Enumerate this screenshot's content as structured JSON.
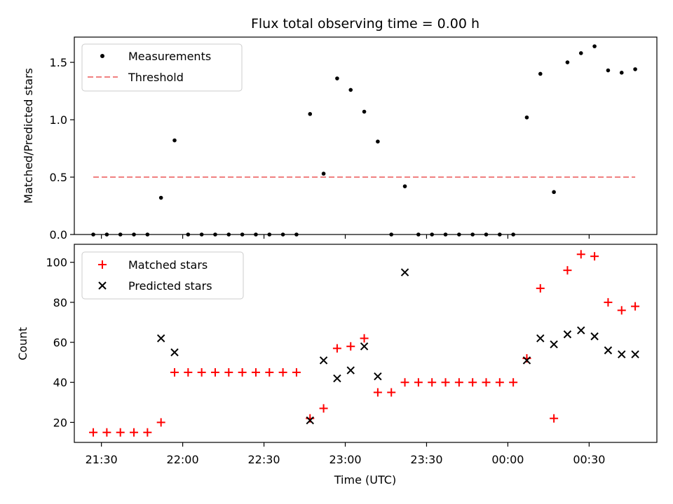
{
  "chart_data": [
    {
      "type": "scatter",
      "title": "Flux total observing time = 0.00 h",
      "xlabel": "",
      "ylabel": "Matched/Predicted stars",
      "ylim": [
        0,
        1.72
      ],
      "yticks": [
        "0.0",
        "0.5",
        "1.0",
        "1.5"
      ],
      "ytick_values": [
        0,
        0.5,
        1.0,
        1.5
      ],
      "x": [
        "21:27",
        "21:32",
        "21:37",
        "21:42",
        "21:47",
        "21:52",
        "21:57",
        "22:02",
        "22:07",
        "22:12",
        "22:17",
        "22:22",
        "22:27",
        "22:32",
        "22:37",
        "22:42",
        "22:47",
        "22:52",
        "22:57",
        "23:02",
        "23:07",
        "23:12",
        "23:17",
        "23:22",
        "23:27",
        "23:32",
        "23:37",
        "23:42",
        "23:47",
        "23:52",
        "23:57",
        "00:02",
        "00:07",
        "00:12",
        "00:17",
        "00:22",
        "00:27",
        "00:32",
        "00:37",
        "00:42",
        "00:47"
      ],
      "series": [
        {
          "name": "Measurements",
          "marker": "dot",
          "color": "#000000",
          "values": [
            0,
            0,
            0,
            0,
            0,
            0.32,
            0.82,
            0,
            0,
            0,
            0,
            0,
            0,
            0,
            0,
            0,
            1.05,
            0.53,
            1.36,
            1.26,
            1.07,
            0.81,
            0,
            0.42,
            0,
            0,
            0,
            0,
            0,
            0,
            0,
            0,
            1.02,
            1.4,
            0.37,
            1.5,
            1.58,
            1.64,
            1.43,
            1.41,
            1.44
          ]
        },
        {
          "name": "Threshold",
          "style": "dashed",
          "color": "#f08080",
          "x": [
            "21:27",
            "00:47"
          ],
          "values": [
            0.5,
            0.5
          ]
        }
      ],
      "legend": "top-left"
    },
    {
      "type": "scatter",
      "title": "",
      "xlabel": "Time (UTC)",
      "ylabel": "Count",
      "ylim": [
        10,
        109
      ],
      "yticks": [
        "20",
        "40",
        "60",
        "80",
        "100"
      ],
      "ytick_values": [
        20,
        40,
        60,
        80,
        100
      ],
      "xlim": [
        "21:20",
        "00:55"
      ],
      "xticks": [
        "21:30",
        "22:00",
        "22:30",
        "23:00",
        "23:30",
        "00:00",
        "00:30"
      ],
      "series": [
        {
          "name": "Matched stars",
          "marker": "plus",
          "color": "#ff0000",
          "x": [
            "21:27",
            "21:32",
            "21:37",
            "21:42",
            "21:47",
            "21:52",
            "21:57",
            "22:02",
            "22:07",
            "22:12",
            "22:17",
            "22:22",
            "22:27",
            "22:32",
            "22:37",
            "22:42",
            "22:47",
            "22:52",
            "22:57",
            "23:02",
            "23:07",
            "23:12",
            "23:17",
            "23:22",
            "23:27",
            "23:32",
            "23:37",
            "23:42",
            "23:47",
            "23:52",
            "23:57",
            "00:02",
            "00:07",
            "00:12",
            "00:17",
            "00:22",
            "00:27",
            "00:32",
            "00:37",
            "00:42",
            "00:47"
          ],
          "values": [
            15,
            15,
            15,
            15,
            15,
            20,
            45,
            45,
            45,
            45,
            45,
            45,
            45,
            45,
            45,
            45,
            22,
            27,
            57,
            58,
            62,
            35,
            35,
            40,
            40,
            40,
            40,
            40,
            40,
            40,
            40,
            40,
            52,
            87,
            22,
            96,
            104,
            103,
            80,
            76,
            78
          ]
        },
        {
          "name": "Predicted stars",
          "marker": "x",
          "color": "#000000",
          "x": [
            "21:52",
            "21:57",
            "22:47",
            "22:52",
            "22:57",
            "23:02",
            "23:07",
            "23:12",
            "23:22",
            "00:07",
            "00:12",
            "00:17",
            "00:22",
            "00:27",
            "00:32",
            "00:37",
            "00:42",
            "00:47"
          ],
          "values": [
            62,
            55,
            21,
            51,
            42,
            46,
            58,
            43,
            95,
            51,
            62,
            59,
            64,
            66,
            63,
            56,
            54,
            54
          ]
        }
      ],
      "legend": "top-left"
    }
  ]
}
